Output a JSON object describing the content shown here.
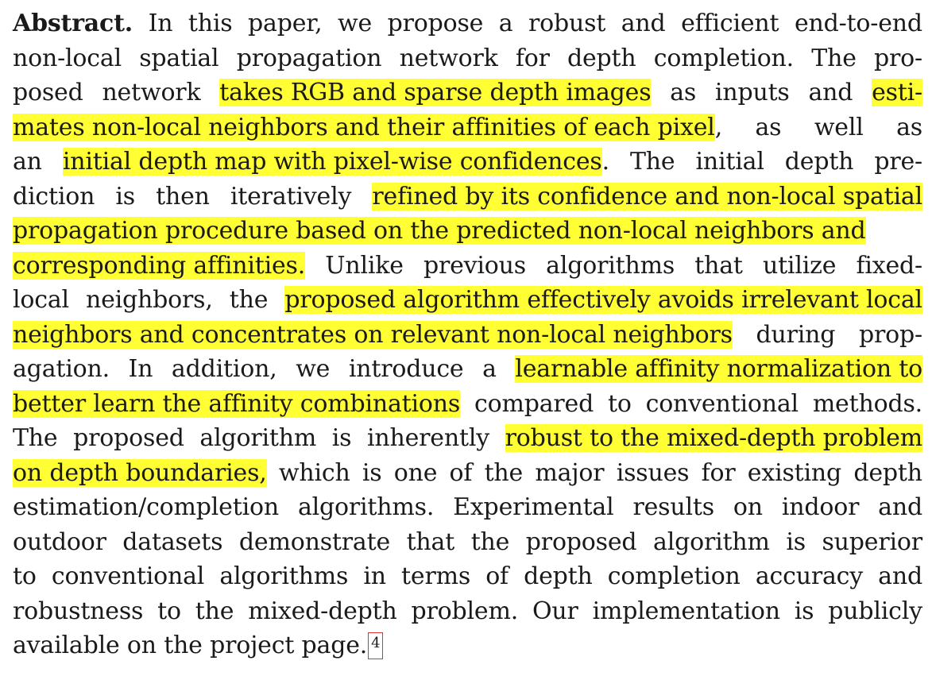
{
  "abstract": {
    "heading": "Abstract.",
    "footnote_marker": "4",
    "lines": [
      [
        {
          "t": "Abstract."
        },
        {
          "t": "In"
        },
        {
          "t": "this"
        },
        {
          "t": "paper,"
        },
        {
          "t": "we"
        },
        {
          "t": "propose"
        },
        {
          "t": "a"
        },
        {
          "t": "robust"
        },
        {
          "t": "and"
        },
        {
          "t": "efficient"
        },
        {
          "t": "end-to-end"
        }
      ],
      [
        {
          "t": "non-local"
        },
        {
          "t": "spatial"
        },
        {
          "t": "propagation"
        },
        {
          "t": "network"
        },
        {
          "t": "for"
        },
        {
          "t": "depth"
        },
        {
          "t": "completion."
        },
        {
          "t": "The"
        },
        {
          "t": "pro-"
        }
      ],
      [
        {
          "t": "posed"
        },
        {
          "t": "network"
        },
        {
          "t": "takes RGB and sparse depth images",
          "h": true
        },
        {
          "t": "as"
        },
        {
          "t": "inputs"
        },
        {
          "t": "and"
        },
        {
          "t": "esti-",
          "h": true
        }
      ],
      [
        {
          "t": "mates non-local neighbors and their affinities of each pixel",
          "h": true
        },
        {
          "t": ","
        },
        {
          "t": "as"
        },
        {
          "t": "well"
        },
        {
          "t": "as"
        }
      ],
      [
        {
          "t": "an"
        },
        {
          "t": "initial depth map with pixel-wise confidences",
          "h": true
        },
        {
          "t": "."
        },
        {
          "t": "The"
        },
        {
          "t": "initial"
        },
        {
          "t": "depth"
        },
        {
          "t": "pre-"
        }
      ],
      [
        {
          "t": "diction"
        },
        {
          "t": "is"
        },
        {
          "t": "then"
        },
        {
          "t": "iteratively"
        },
        {
          "t": "refined by its confidence and non-local spatial",
          "h": true
        }
      ],
      [
        {
          "t": "propagation procedure based on the predicted non-local neighbors and",
          "h": true
        }
      ],
      [
        {
          "t": "corresponding affinities.",
          "h": true
        },
        {
          "t": "Unlike"
        },
        {
          "t": "previous"
        },
        {
          "t": "algorithms"
        },
        {
          "t": "that"
        },
        {
          "t": "utilize"
        },
        {
          "t": "fixed-"
        }
      ],
      [
        {
          "t": "local"
        },
        {
          "t": "neighbors,"
        },
        {
          "t": "the"
        },
        {
          "t": "proposed algorithm effectively avoids irrelevant local",
          "h": true
        }
      ],
      [
        {
          "t": "neighbors and concentrates on relevant non-local neighbors",
          "h": true
        },
        {
          "t": "during"
        },
        {
          "t": "prop-"
        }
      ],
      [
        {
          "t": "agation."
        },
        {
          "t": "In"
        },
        {
          "t": "addition,"
        },
        {
          "t": "we"
        },
        {
          "t": "introduce"
        },
        {
          "t": "a"
        },
        {
          "t": "learnable affinity normalization to",
          "h": true
        }
      ],
      [
        {
          "t": "better learn the affinity combinations",
          "h": true
        },
        {
          "t": "compared"
        },
        {
          "t": "to"
        },
        {
          "t": "conventional"
        },
        {
          "t": "methods."
        }
      ],
      [
        {
          "t": "The"
        },
        {
          "t": "proposed"
        },
        {
          "t": "algorithm"
        },
        {
          "t": "is"
        },
        {
          "t": "inherently"
        },
        {
          "t": "robust to the mixed-depth problem",
          "h": true
        }
      ],
      [
        {
          "t": "on depth boundaries,",
          "h": true
        },
        {
          "t": "which"
        },
        {
          "t": "is"
        },
        {
          "t": "one"
        },
        {
          "t": "of"
        },
        {
          "t": "the"
        },
        {
          "t": "major"
        },
        {
          "t": "issues"
        },
        {
          "t": "for"
        },
        {
          "t": "existing"
        },
        {
          "t": "depth"
        }
      ],
      [
        {
          "t": "estimation/completion"
        },
        {
          "t": "algorithms."
        },
        {
          "t": "Experimental"
        },
        {
          "t": "results"
        },
        {
          "t": "on"
        },
        {
          "t": "indoor"
        },
        {
          "t": "and"
        }
      ],
      [
        {
          "t": "outdoor"
        },
        {
          "t": "datasets"
        },
        {
          "t": "demonstrate"
        },
        {
          "t": "that"
        },
        {
          "t": "the"
        },
        {
          "t": "proposed"
        },
        {
          "t": "algorithm"
        },
        {
          "t": "is"
        },
        {
          "t": "superior"
        }
      ],
      [
        {
          "t": "to"
        },
        {
          "t": "conventional"
        },
        {
          "t": "algorithms"
        },
        {
          "t": "in"
        },
        {
          "t": "terms"
        },
        {
          "t": "of"
        },
        {
          "t": "depth"
        },
        {
          "t": "completion"
        },
        {
          "t": "accuracy"
        },
        {
          "t": "and"
        }
      ],
      [
        {
          "t": "robustness"
        },
        {
          "t": "to"
        },
        {
          "t": "the"
        },
        {
          "t": "mixed-depth"
        },
        {
          "t": "problem."
        },
        {
          "t": "Our"
        },
        {
          "t": "implementation"
        },
        {
          "t": "is"
        },
        {
          "t": "publicly"
        }
      ],
      [
        {
          "t": "available on the project page."
        }
      ]
    ]
  },
  "colors": {
    "highlight": "#ffff33",
    "text": "#1a1a1a",
    "footnote_box": "#e03030"
  }
}
